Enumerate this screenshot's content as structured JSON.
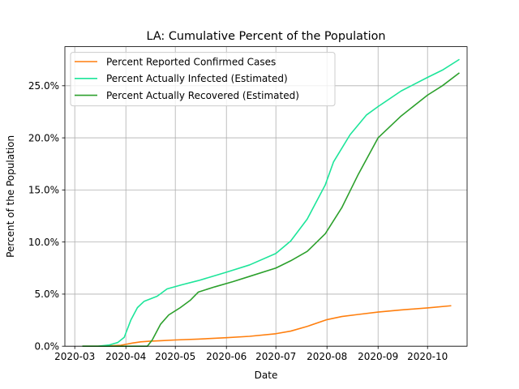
{
  "chart_data": {
    "type": "line",
    "title": "LA: Cumulative Percent of the Population",
    "xlabel": "Date",
    "ylabel": "Percent of the Population",
    "x_ticks": [
      "2020-03",
      "2020-04",
      "2020-05",
      "2020-06",
      "2020-07",
      "2020-08",
      "2020-09",
      "2020-10"
    ],
    "y_ticks": [
      "0.0%",
      "5.0%",
      "10.0%",
      "15.0%",
      "20.0%",
      "25.0%"
    ],
    "xlim": [
      "2020-02-24",
      "2020-10-25"
    ],
    "ylim": [
      0,
      0.2875
    ],
    "grid": true,
    "legend_position": "upper-left",
    "series": [
      {
        "name": "Percent Reported Confirmed Cases",
        "color": "#ff7f0e",
        "points": [
          [
            "2020-03-06",
            0.0
          ],
          [
            "2020-03-15",
            0.0
          ],
          [
            "2020-03-22",
            0.0003
          ],
          [
            "2020-03-29",
            0.0009
          ],
          [
            "2020-04-01",
            0.0018
          ],
          [
            "2020-04-05",
            0.003
          ],
          [
            "2020-04-10",
            0.0042
          ],
          [
            "2020-04-15",
            0.0048
          ],
          [
            "2020-04-22",
            0.0053
          ],
          [
            "2020-05-01",
            0.006
          ],
          [
            "2020-05-15",
            0.0068
          ],
          [
            "2020-06-01",
            0.0082
          ],
          [
            "2020-06-15",
            0.0095
          ],
          [
            "2020-07-01",
            0.012
          ],
          [
            "2020-07-10",
            0.0145
          ],
          [
            "2020-07-20",
            0.019
          ],
          [
            "2020-08-01",
            0.0255
          ],
          [
            "2020-08-10",
            0.0285
          ],
          [
            "2020-08-20",
            0.0305
          ],
          [
            "2020-09-01",
            0.0328
          ],
          [
            "2020-09-15",
            0.0348
          ],
          [
            "2020-10-01",
            0.0368
          ],
          [
            "2020-10-15",
            0.0388
          ]
        ]
      },
      {
        "name": "Percent Actually Infected (Estimated)",
        "color": "#1de59a",
        "points": [
          [
            "2020-03-06",
            0.0
          ],
          [
            "2020-03-15",
            0.0
          ],
          [
            "2020-03-22",
            0.0012
          ],
          [
            "2020-03-27",
            0.0035
          ],
          [
            "2020-03-31",
            0.0085
          ],
          [
            "2020-04-04",
            0.025
          ],
          [
            "2020-04-08",
            0.037
          ],
          [
            "2020-04-12",
            0.043
          ],
          [
            "2020-04-20",
            0.048
          ],
          [
            "2020-04-26",
            0.055
          ],
          [
            "2020-05-05",
            0.059
          ],
          [
            "2020-05-15",
            0.063
          ],
          [
            "2020-06-01",
            0.071
          ],
          [
            "2020-06-15",
            0.078
          ],
          [
            "2020-07-01",
            0.089
          ],
          [
            "2020-07-10",
            0.101
          ],
          [
            "2020-07-20",
            0.122
          ],
          [
            "2020-07-31",
            0.155
          ],
          [
            "2020-08-05",
            0.177
          ],
          [
            "2020-08-15",
            0.203
          ],
          [
            "2020-08-25",
            0.222
          ],
          [
            "2020-09-01",
            0.23
          ],
          [
            "2020-09-15",
            0.245
          ],
          [
            "2020-10-01",
            0.258
          ],
          [
            "2020-10-10",
            0.265
          ],
          [
            "2020-10-20",
            0.275
          ]
        ]
      },
      {
        "name": "Percent Actually Recovered (Estimated)",
        "color": "#2ca02c",
        "points": [
          [
            "2020-03-06",
            0.0
          ],
          [
            "2020-04-14",
            0.0
          ],
          [
            "2020-04-17",
            0.006
          ],
          [
            "2020-04-22",
            0.021
          ],
          [
            "2020-04-27",
            0.03
          ],
          [
            "2020-05-04",
            0.037
          ],
          [
            "2020-05-10",
            0.044
          ],
          [
            "2020-05-15",
            0.052
          ],
          [
            "2020-05-25",
            0.057
          ],
          [
            "2020-06-05",
            0.062
          ],
          [
            "2020-06-15",
            0.067
          ],
          [
            "2020-07-01",
            0.075
          ],
          [
            "2020-07-10",
            0.082
          ],
          [
            "2020-07-20",
            0.091
          ],
          [
            "2020-07-31",
            0.108
          ],
          [
            "2020-08-10",
            0.133
          ],
          [
            "2020-08-20",
            0.165
          ],
          [
            "2020-09-01",
            0.2
          ],
          [
            "2020-09-15",
            0.221
          ],
          [
            "2020-10-01",
            0.241
          ],
          [
            "2020-10-10",
            0.25
          ],
          [
            "2020-10-20",
            0.262
          ]
        ]
      }
    ]
  }
}
